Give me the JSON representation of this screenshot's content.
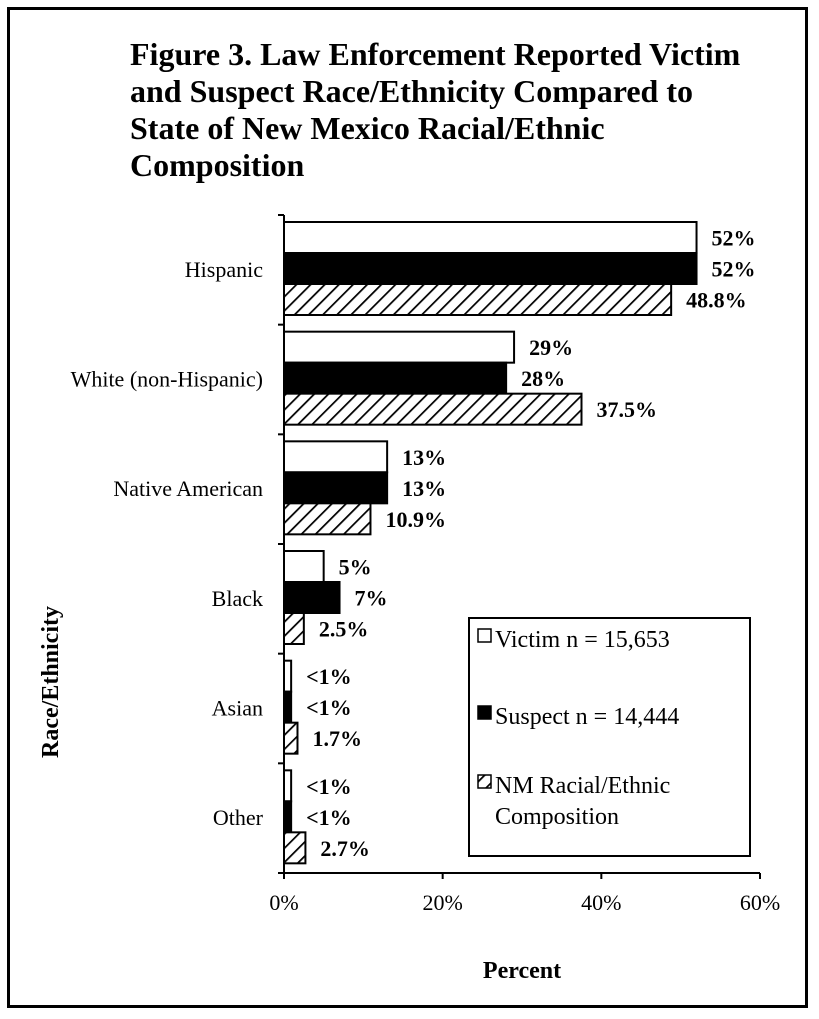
{
  "chart_data": {
    "type": "bar",
    "orientation": "horizontal",
    "title": "Figure 3.  Law Enforcement Reported Victim and Suspect Race/Ethnicity Compared to State of New Mexico Racial/Ethnic Composition",
    "xlabel": "Percent",
    "ylabel": "Race/Ethnicity",
    "xlim": [
      0,
      60
    ],
    "x_ticks": [
      "0%",
      "20%",
      "40%",
      "60%"
    ],
    "grid": false,
    "legend_position": "bottom-right",
    "categories": [
      "Hispanic",
      "White (non-Hispanic)",
      "Native American",
      "Black",
      "Asian",
      "Other"
    ],
    "series": [
      {
        "name": "Victim  n = 15,653",
        "style": "white",
        "values": [
          52,
          29,
          13,
          5,
          0.9,
          0.9
        ],
        "labels": [
          "52%",
          "29%",
          "13%",
          "5%",
          "<1%",
          "<1%"
        ]
      },
      {
        "name": "Suspect  n = 14,444",
        "style": "black",
        "values": [
          52,
          28,
          13,
          7,
          0.9,
          0.9
        ],
        "labels": [
          "52%",
          "28%",
          "13%",
          "7%",
          "<1%",
          "<1%"
        ]
      },
      {
        "name": "NM Racial/Ethnic Composition",
        "legend_lines": [
          "NM Racial/Ethnic",
          "Composition"
        ],
        "style": "hatched",
        "values": [
          48.8,
          37.5,
          10.9,
          2.5,
          1.7,
          2.7
        ],
        "labels": [
          "48.8%",
          "37.5%",
          "10.9%",
          "2.5%",
          "1.7%",
          "2.7%"
        ]
      }
    ],
    "colors": {
      "victim": "#ffffff",
      "suspect": "#000000",
      "hatch": "#000000",
      "outline": "#000000"
    }
  }
}
